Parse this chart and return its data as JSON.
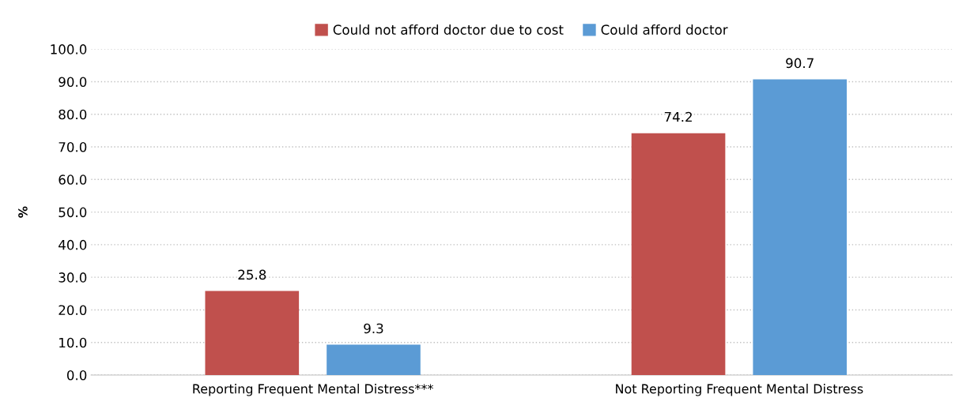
{
  "chart_data": {
    "type": "bar",
    "ylabel": "%",
    "categories": [
      "Reporting Frequent Mental Distress***",
      "Not Reporting Frequent Mental Distress"
    ],
    "series": [
      {
        "name": "Could not afford doctor due to cost",
        "color": "#c0504d",
        "values": [
          25.8,
          74.2
        ]
      },
      {
        "name": "Could afford doctor",
        "color": "#5b9bd5",
        "values": [
          9.3,
          90.7
        ]
      }
    ],
    "ylim": [
      0,
      100
    ],
    "yticks": [
      {
        "value": 0,
        "label": "0.0"
      },
      {
        "value": 10,
        "label": "10.0"
      },
      {
        "value": 20,
        "label": "20.0"
      },
      {
        "value": 30,
        "label": "30.0"
      },
      {
        "value": 40,
        "label": "40.0"
      },
      {
        "value": 50,
        "label": "50.0"
      },
      {
        "value": 60,
        "label": "60.0"
      },
      {
        "value": 70,
        "label": "70.0"
      },
      {
        "value": 80,
        "label": "80.0"
      },
      {
        "value": 90,
        "label": "90.0"
      },
      {
        "value": 100,
        "label": "100.0"
      }
    ],
    "grid": "y",
    "legend": "top",
    "data_labels": true
  }
}
